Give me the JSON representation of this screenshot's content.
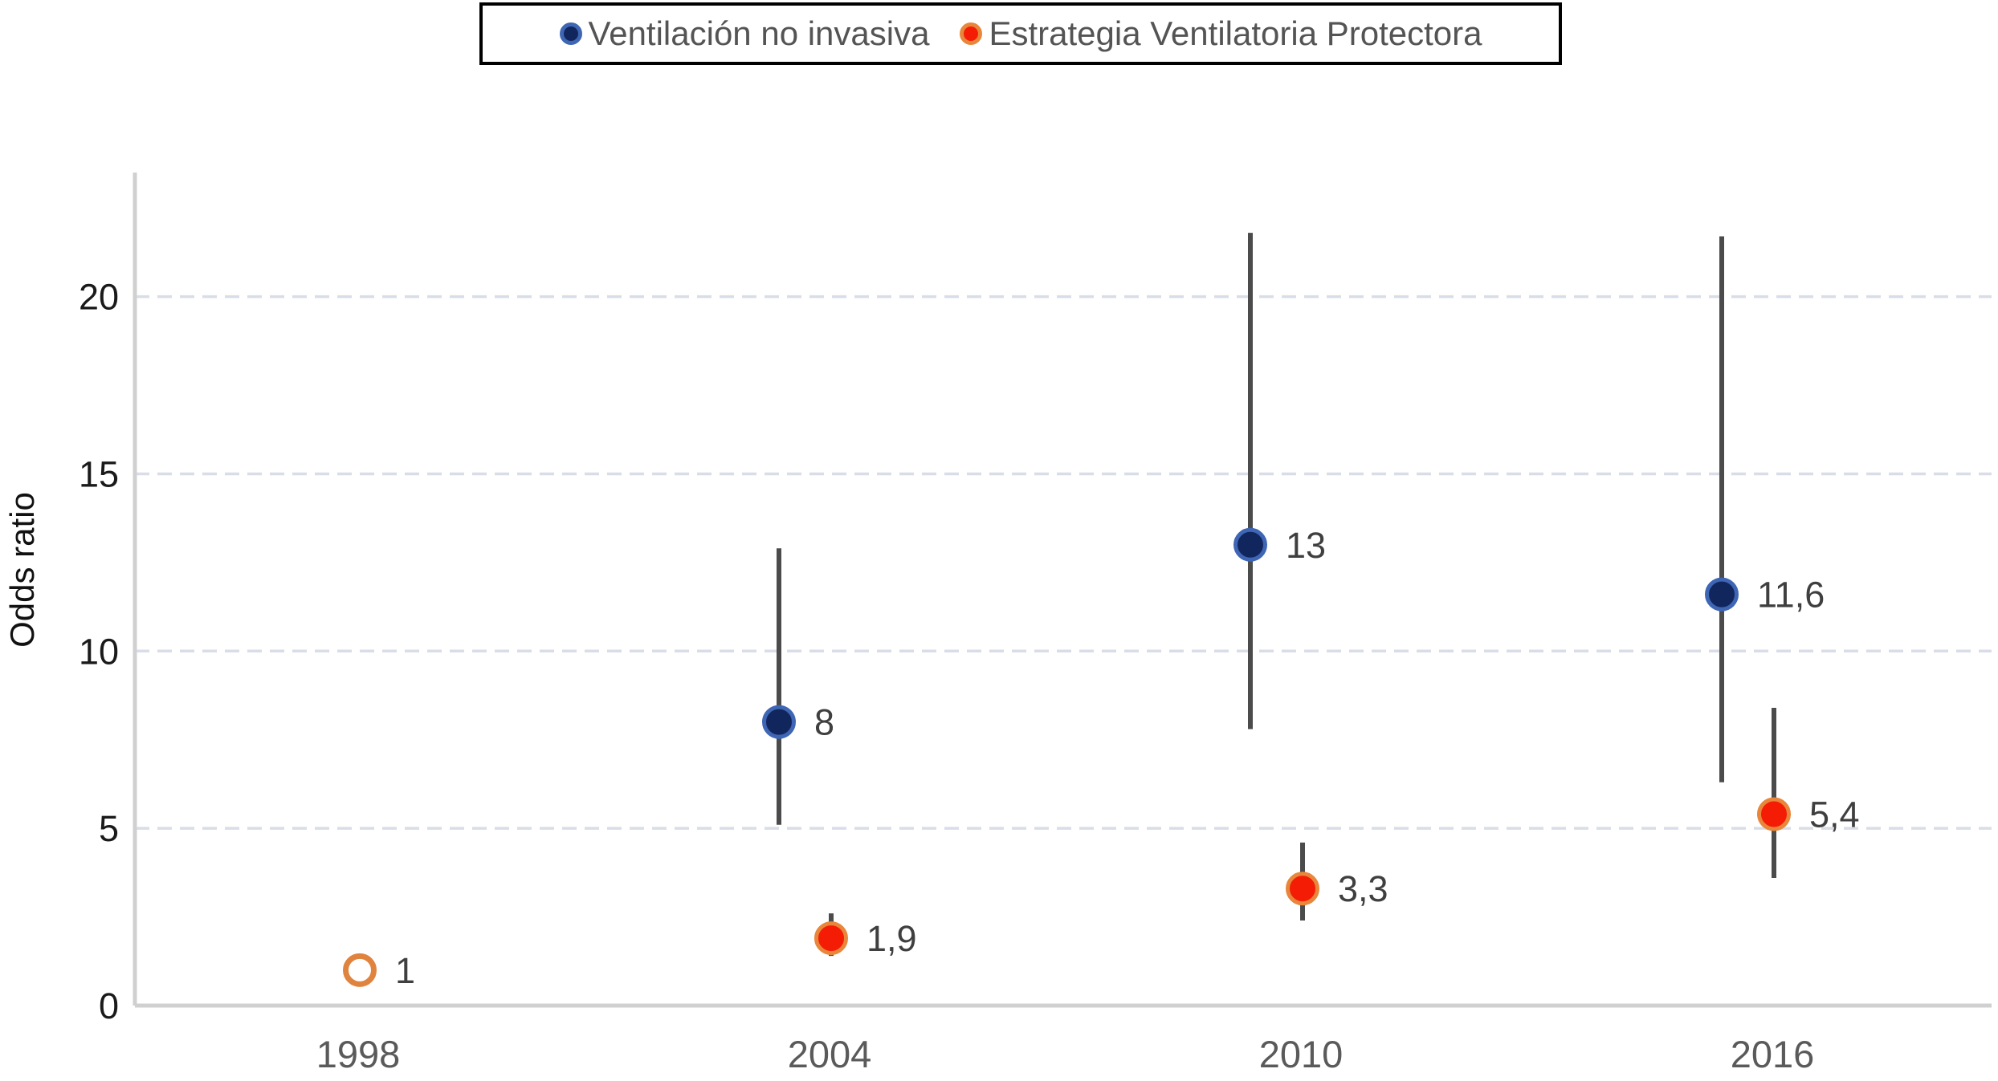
{
  "legend": {
    "items": [
      {
        "label": "Ventilación no invasiva",
        "fill": "#12265e",
        "ring": "#3e66b4"
      },
      {
        "label": "Estrategia Ventilatoria Protectora",
        "fill": "#f41c05",
        "ring": "#e8873c"
      }
    ]
  },
  "chart_data": {
    "type": "scatter",
    "title": "",
    "xlabel": "",
    "ylabel": "Odds ratio",
    "categories": [
      "1998",
      "2004",
      "2010",
      "2016"
    ],
    "yticks": [
      0,
      5,
      10,
      15,
      20
    ],
    "ylim": [
      0,
      23.5
    ],
    "grid": "horizontal dashed at 5,10,15,20",
    "legend_position": "top-center",
    "series": [
      {
        "name": "Ventilación no invasiva",
        "marker": "filled-circle",
        "fill": "#12265e",
        "ring": "#3e66b4",
        "points": [
          {
            "x": "2004",
            "y": 8,
            "label": "8",
            "ci_low": 5.1,
            "ci_high": 12.9
          },
          {
            "x": "2010",
            "y": 13,
            "label": "13",
            "ci_low": 7.8,
            "ci_high": 21.8
          },
          {
            "x": "2016",
            "y": 11.6,
            "label": "11,6",
            "ci_low": 6.3,
            "ci_high": 21.7
          }
        ]
      },
      {
        "name": "Estrategia Ventilatoria Protectora",
        "marker": "filled-circle",
        "fill": "#f41c05",
        "ring": "#e8873c",
        "points": [
          {
            "x": "1998",
            "y": 1,
            "label": "1",
            "open": true
          },
          {
            "x": "2004",
            "y": 1.9,
            "label": "1,9",
            "ci_low": 1.4,
            "ci_high": 2.6
          },
          {
            "x": "2010",
            "y": 3.3,
            "label": "3,3",
            "ci_low": 2.4,
            "ci_high": 4.6
          },
          {
            "x": "2016",
            "y": 5.4,
            "label": "5,4",
            "ci_low": 3.6,
            "ci_high": 8.4
          }
        ]
      }
    ]
  },
  "colors": {
    "background": "#ffffff",
    "error_bar": "#4b4b4b",
    "gridline": "#d8dde8",
    "axis_line": "#d0d0d0",
    "ytick_text": "#1a1a1a",
    "xtick_text": "#5a5a5a",
    "value_label_text": "#3f3f3f",
    "legend_text": "#545454",
    "legend_border": "#000000",
    "open_marker_stroke": "#e0833e"
  }
}
